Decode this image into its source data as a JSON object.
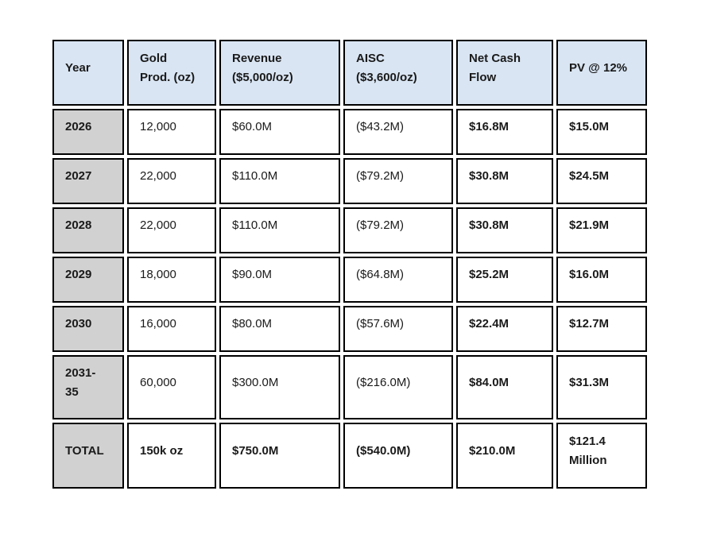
{
  "colors": {
    "page_bg": "#ffffff",
    "header_bg": "#d9e5f3",
    "year_col_bg": "#d1d1d1",
    "border": "#000000",
    "text": "#1a1a1a"
  },
  "table": {
    "headers": [
      "Year",
      "Gold\nProd. (oz)",
      "Revenue\n($5,000/oz)",
      "AISC\n($3,600/oz)",
      "Net Cash\nFlow",
      "PV @ 12%"
    ],
    "rows": [
      {
        "year": "2026",
        "gold_prod": "12,000",
        "revenue": "$60.0M",
        "aisc": "($43.2M)",
        "net_cash_flow": "$16.8M",
        "pv": "$15.0M"
      },
      {
        "year": "2027",
        "gold_prod": "22,000",
        "revenue": "$110.0M",
        "aisc": "($79.2M)",
        "net_cash_flow": "$30.8M",
        "pv": "$24.5M"
      },
      {
        "year": "2028",
        "gold_prod": "22,000",
        "revenue": "$110.0M",
        "aisc": "($79.2M)",
        "net_cash_flow": "$30.8M",
        "pv": "$21.9M"
      },
      {
        "year": "2029",
        "gold_prod": "18,000",
        "revenue": "$90.0M",
        "aisc": "($64.8M)",
        "net_cash_flow": "$25.2M",
        "pv": "$16.0M"
      },
      {
        "year": "2030",
        "gold_prod": "16,000",
        "revenue": "$80.0M",
        "aisc": "($57.6M)",
        "net_cash_flow": "$22.4M",
        "pv": "$12.7M"
      },
      {
        "year": "2031-35",
        "gold_prod": "60,000",
        "revenue": "$300.0M",
        "aisc": "($216.0M)",
        "net_cash_flow": "$84.0M",
        "pv": "$31.3M"
      },
      {
        "year": "TOTAL",
        "gold_prod": "150k oz",
        "revenue": "$750.0M",
        "aisc": "($540.0M)",
        "net_cash_flow": "$210.0M",
        "pv": "$121.4 Million"
      }
    ]
  }
}
